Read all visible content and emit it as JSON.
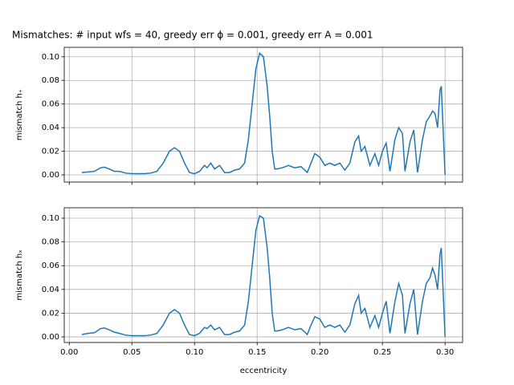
{
  "chart_data": [
    {
      "type": "line",
      "title": "Mismatches: # input wfs = 40, greedy err ϕ = 0.001, greedy err A = 0.001",
      "y_label": "mismatch h₊",
      "color": "#1f77b4",
      "grid": true,
      "x": [
        0.01,
        0.015,
        0.02,
        0.025,
        0.028,
        0.032,
        0.036,
        0.04,
        0.045,
        0.05,
        0.055,
        0.06,
        0.065,
        0.07,
        0.075,
        0.08,
        0.084,
        0.088,
        0.092,
        0.096,
        0.1,
        0.104,
        0.108,
        0.11,
        0.113,
        0.116,
        0.12,
        0.124,
        0.128,
        0.132,
        0.136,
        0.14,
        0.143,
        0.146,
        0.149,
        0.152,
        0.155,
        0.158,
        0.16,
        0.162,
        0.164,
        0.166,
        0.17,
        0.175,
        0.18,
        0.185,
        0.19,
        0.193,
        0.196,
        0.2,
        0.204,
        0.208,
        0.212,
        0.216,
        0.22,
        0.224,
        0.228,
        0.231,
        0.233,
        0.236,
        0.24,
        0.244,
        0.247,
        0.25,
        0.253,
        0.256,
        0.26,
        0.263,
        0.266,
        0.268,
        0.272,
        0.275,
        0.278,
        0.282,
        0.285,
        0.288,
        0.29,
        0.292,
        0.294,
        0.296,
        0.297,
        0.3
      ],
      "values": [
        0.002,
        0.0025,
        0.003,
        0.006,
        0.0065,
        0.005,
        0.003,
        0.003,
        0.0015,
        0.001,
        0.001,
        0.001,
        0.0015,
        0.003,
        0.01,
        0.02,
        0.023,
        0.02,
        0.01,
        0.002,
        0.001,
        0.003,
        0.008,
        0.006,
        0.01,
        0.005,
        0.008,
        0.002,
        0.002,
        0.004,
        0.005,
        0.01,
        0.03,
        0.06,
        0.09,
        0.103,
        0.1,
        0.075,
        0.05,
        0.02,
        0.005,
        0.005,
        0.006,
        0.008,
        0.006,
        0.007,
        0.002,
        0.01,
        0.018,
        0.015,
        0.008,
        0.01,
        0.008,
        0.01,
        0.004,
        0.01,
        0.028,
        0.033,
        0.02,
        0.024,
        0.008,
        0.018,
        0.008,
        0.02,
        0.027,
        0.003,
        0.03,
        0.04,
        0.035,
        0.003,
        0.028,
        0.038,
        0.002,
        0.03,
        0.045,
        0.05,
        0.054,
        0.052,
        0.04,
        0.072,
        0.075,
        0.0
      ],
      "xlim": [
        -0.004,
        0.314
      ],
      "xticks": [
        0,
        0.05,
        0.1,
        0.15,
        0.2,
        0.25,
        0.3
      ],
      "ylim": [
        -0.0061,
        0.108
      ],
      "yticks": [
        {
          "value": 0,
          "label": "0.00"
        },
        {
          "value": 0.02,
          "label": "0.02"
        },
        {
          "value": 0.04,
          "label": "0.04"
        },
        {
          "value": 0.06,
          "label": "0.06"
        },
        {
          "value": 0.08,
          "label": "0.08"
        },
        {
          "value": 0.1,
          "label": "0.10"
        }
      ]
    },
    {
      "type": "line",
      "y_label": "mismatch hₓ",
      "x_label": "eccentricity",
      "color": "#1f77b4",
      "grid": true,
      "x": [
        0.01,
        0.015,
        0.02,
        0.025,
        0.028,
        0.032,
        0.036,
        0.04,
        0.045,
        0.05,
        0.055,
        0.06,
        0.065,
        0.07,
        0.075,
        0.08,
        0.084,
        0.088,
        0.092,
        0.096,
        0.1,
        0.104,
        0.108,
        0.11,
        0.113,
        0.116,
        0.12,
        0.124,
        0.128,
        0.132,
        0.136,
        0.14,
        0.143,
        0.146,
        0.149,
        0.152,
        0.155,
        0.158,
        0.16,
        0.162,
        0.164,
        0.166,
        0.17,
        0.175,
        0.18,
        0.185,
        0.19,
        0.193,
        0.196,
        0.2,
        0.204,
        0.208,
        0.212,
        0.216,
        0.22,
        0.224,
        0.228,
        0.231,
        0.233,
        0.236,
        0.24,
        0.244,
        0.247,
        0.25,
        0.253,
        0.256,
        0.26,
        0.263,
        0.266,
        0.268,
        0.272,
        0.275,
        0.278,
        0.282,
        0.285,
        0.288,
        0.29,
        0.292,
        0.294,
        0.296,
        0.297,
        0.3
      ],
      "values": [
        0.002,
        0.003,
        0.0035,
        0.007,
        0.0075,
        0.006,
        0.004,
        0.003,
        0.0015,
        0.001,
        0.001,
        0.001,
        0.0015,
        0.003,
        0.01,
        0.02,
        0.023,
        0.02,
        0.01,
        0.002,
        0.001,
        0.003,
        0.008,
        0.007,
        0.01,
        0.006,
        0.008,
        0.002,
        0.002,
        0.004,
        0.005,
        0.01,
        0.03,
        0.06,
        0.09,
        0.102,
        0.1,
        0.075,
        0.05,
        0.02,
        0.005,
        0.005,
        0.006,
        0.008,
        0.006,
        0.007,
        0.002,
        0.01,
        0.017,
        0.015,
        0.008,
        0.01,
        0.008,
        0.01,
        0.004,
        0.01,
        0.028,
        0.035,
        0.02,
        0.024,
        0.008,
        0.018,
        0.008,
        0.02,
        0.03,
        0.003,
        0.03,
        0.045,
        0.035,
        0.003,
        0.028,
        0.04,
        0.002,
        0.03,
        0.045,
        0.05,
        0.058,
        0.052,
        0.04,
        0.07,
        0.075,
        0.0
      ],
      "xlim": [
        -0.004,
        0.314
      ],
      "xticks": [
        {
          "value": 0,
          "label": "0.00"
        },
        {
          "value": 0.05,
          "label": "0.05"
        },
        {
          "value": 0.1,
          "label": "0.10"
        },
        {
          "value": 0.15,
          "label": "0.15"
        },
        {
          "value": 0.2,
          "label": "0.20"
        },
        {
          "value": 0.25,
          "label": "0.25"
        },
        {
          "value": 0.3,
          "label": "0.30"
        }
      ],
      "ylim": [
        -0.0047,
        0.1088
      ],
      "yticks": [
        {
          "value": 0,
          "label": "0.00"
        },
        {
          "value": 0.02,
          "label": "0.02"
        },
        {
          "value": 0.04,
          "label": "0.04"
        },
        {
          "value": 0.06,
          "label": "0.06"
        },
        {
          "value": 0.08,
          "label": "0.08"
        },
        {
          "value": 0.1,
          "label": "0.10"
        }
      ]
    }
  ]
}
